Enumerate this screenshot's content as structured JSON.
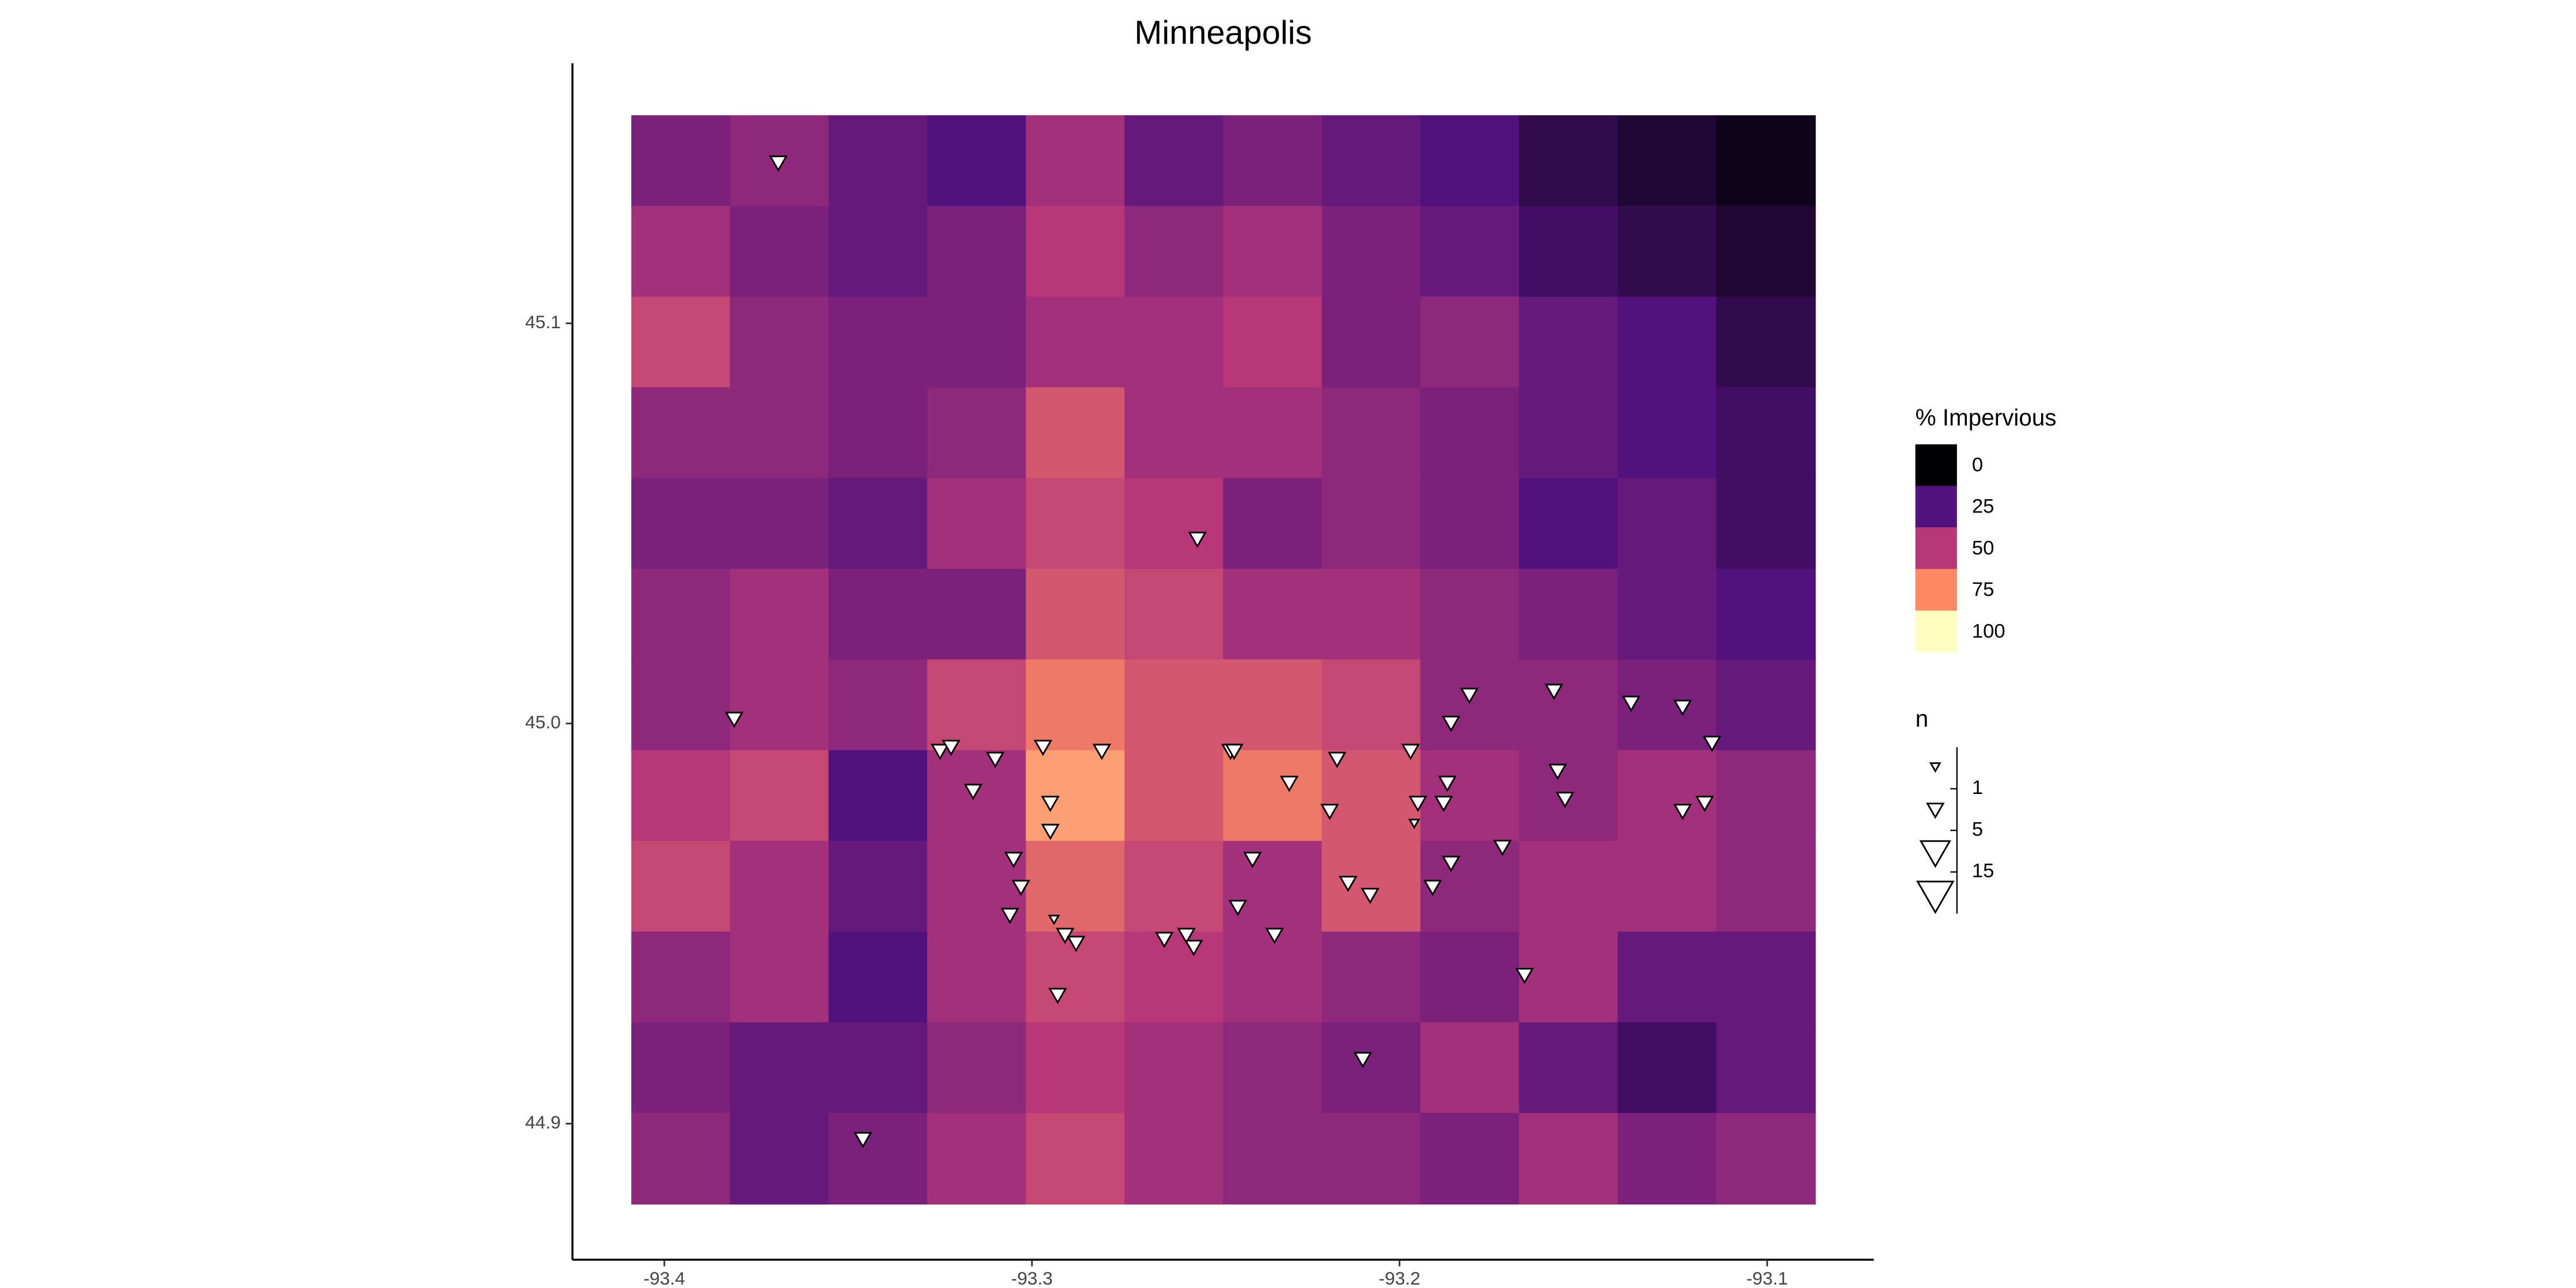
{
  "chart_data": {
    "type": "raster-map",
    "title": "Minneapolis",
    "xlim": [
      -93.425,
      -93.071
    ],
    "ylim": [
      44.866,
      45.165
    ],
    "xticks": [
      -93.4,
      -93.3,
      -93.2,
      -93.1
    ],
    "yticks": [
      44.9,
      {
        "value": 45,
        "label": "45.0"
      },
      45.1
    ],
    "raster": {
      "extent_x": [
        -93.409,
        -93.087
      ],
      "extent_y": [
        44.88,
        45.152
      ],
      "values": [
        [
          35,
          40,
          30,
          25,
          45,
          30,
          35,
          30,
          25,
          15,
          10,
          5
        ],
        [
          45,
          35,
          30,
          35,
          50,
          40,
          45,
          35,
          30,
          20,
          15,
          10
        ],
        [
          55,
          40,
          35,
          35,
          45,
          45,
          50,
          35,
          40,
          30,
          25,
          15
        ],
        [
          40,
          40,
          35,
          40,
          60,
          45,
          45,
          40,
          35,
          30,
          25,
          20
        ],
        [
          35,
          35,
          30,
          45,
          55,
          50,
          35,
          40,
          35,
          25,
          30,
          20
        ],
        [
          40,
          45,
          35,
          35,
          60,
          55,
          45,
          45,
          40,
          35,
          30,
          25
        ],
        [
          40,
          45,
          40,
          55,
          70,
          60,
          60,
          55,
          40,
          40,
          35,
          30
        ],
        [
          50,
          55,
          25,
          45,
          80,
          60,
          70,
          60,
          45,
          40,
          45,
          40
        ],
        [
          55,
          45,
          30,
          45,
          65,
          55,
          45,
          60,
          40,
          45,
          45,
          40
        ],
        [
          40,
          45,
          25,
          45,
          55,
          50,
          45,
          40,
          35,
          45,
          30,
          30
        ],
        [
          35,
          30,
          30,
          40,
          50,
          45,
          40,
          35,
          45,
          30,
          20,
          30
        ],
        [
          40,
          30,
          35,
          45,
          55,
          45,
          40,
          40,
          35,
          45,
          35,
          40
        ]
      ]
    },
    "fill_legend": {
      "title": "% Impervious",
      "breaks": [
        0,
        25,
        50,
        75,
        100
      ],
      "colors": [
        "#000004",
        "#51127c",
        "#b73779",
        "#fc8961",
        "#fcfdbf"
      ]
    },
    "points": {
      "x": [
        -93.369,
        -93.255,
        -93.381,
        -93.181,
        -93.158,
        -93.137,
        -93.123,
        -93.186,
        -93.115,
        -93.325,
        -93.322,
        -93.31,
        -93.297,
        -93.281,
        -93.246,
        -93.245,
        -93.217,
        -93.197,
        -93.157,
        -93.23,
        -93.187,
        -93.316,
        -93.295,
        -93.195,
        -93.188,
        -93.155,
        -93.117,
        -93.123,
        -93.219,
        -93.295,
        -93.196,
        -93.305,
        -93.24,
        -93.172,
        -93.186,
        -93.303,
        -93.214,
        -93.208,
        -93.191,
        -93.306,
        -93.244,
        -93.294,
        -93.291,
        -93.288,
        -93.264,
        -93.258,
        -93.256,
        -93.234,
        -93.293,
        -93.166,
        -93.21,
        -93.346
      ],
      "y": [
        45.14,
        45.046,
        45.001,
        45.007,
        45.008,
        45.005,
        45.004,
        45.0,
        44.995,
        44.993,
        44.994,
        44.991,
        44.994,
        44.993,
        44.993,
        44.993,
        44.991,
        44.993,
        44.988,
        44.985,
        44.985,
        44.983,
        44.98,
        44.98,
        44.98,
        44.981,
        44.98,
        44.978,
        44.978,
        44.973,
        44.975,
        44.966,
        44.966,
        44.969,
        44.965,
        44.959,
        44.96,
        44.957,
        44.959,
        44.952,
        44.954,
        44.951,
        44.947,
        44.945,
        44.946,
        44.947,
        44.944,
        44.947,
        44.932,
        44.937,
        44.916,
        44.896
      ],
      "n": [
        3,
        3,
        3,
        3,
        3,
        3,
        3,
        3,
        3,
        3,
        3,
        3,
        3,
        3,
        3,
        3,
        3,
        3,
        3,
        3,
        3,
        3,
        3,
        3,
        3,
        3,
        3,
        3,
        3,
        3,
        1,
        3,
        3,
        3,
        3,
        3,
        3,
        3,
        3,
        3,
        3,
        1,
        3,
        3,
        3,
        3,
        3,
        3,
        3,
        3,
        3,
        3
      ]
    },
    "size_legend": {
      "title": "n",
      "breaks": [
        1,
        5,
        15
      ]
    }
  }
}
